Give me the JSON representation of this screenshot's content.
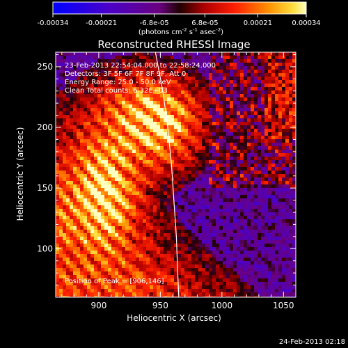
{
  "chart_data": {
    "type": "heatmap",
    "title": "Reconstructed RHESSI Image",
    "xlabel": "Heliocentric X (arcsec)",
    "ylabel": "Heliocentric Y (arcsec)",
    "xlim": [
      865,
      1060
    ],
    "ylim": [
      60,
      262
    ],
    "xticks": [
      900,
      950,
      1000,
      1050
    ],
    "yticks": [
      100,
      150,
      200,
      250
    ],
    "colorbar": {
      "min": -0.00034,
      "max": 0.00034,
      "tick_values": [
        -0.00034,
        -0.00021,
        -6.8e-05,
        6.8e-05,
        0.00021,
        0.00034
      ],
      "tick_labels": [
        "-0.00034",
        "-0.00021",
        "-6.8e-05",
        "6.8e-05",
        "0.00021",
        "0.00034"
      ],
      "unit_label": "(photons cm",
      "unit_exp1": "-2",
      "unit_mid": " s",
      "unit_exp2": "-1",
      "unit_mid2": " asec",
      "unit_exp3": "-2",
      "unit_end": ")"
    },
    "info_lines": [
      "23-Feb-2013 22:54:04.000 to 22:58:24.000",
      "Detectors: 3F 5F 6F 7F 8F 9F, Att 0",
      "Energy Range: 25.0 - 50.0 keV",
      "Clean     Total counts: 6.32E+03"
    ],
    "peak_label": "Position of Peak = [906,146]",
    "peak_position": [
      906,
      146
    ],
    "limb_curve": [
      [
        946,
        262
      ],
      [
        952,
        230
      ],
      [
        956,
        200
      ],
      [
        959,
        170
      ],
      [
        961,
        140
      ],
      [
        963,
        110
      ],
      [
        964,
        82
      ],
      [
        965,
        60
      ]
    ],
    "sources": [
      {
        "x": 906,
        "y": 152,
        "amp": 1.0,
        "sx": 20,
        "sy": 30
      },
      {
        "x": 955,
        "y": 200,
        "amp": 0.9,
        "sx": 22,
        "sy": 26
      },
      {
        "x": 925,
        "y": 215,
        "amp": 0.65,
        "sx": 30,
        "sy": 25
      }
    ]
  },
  "footer": {
    "timestamp": "24-Feb-2013 02:18"
  }
}
